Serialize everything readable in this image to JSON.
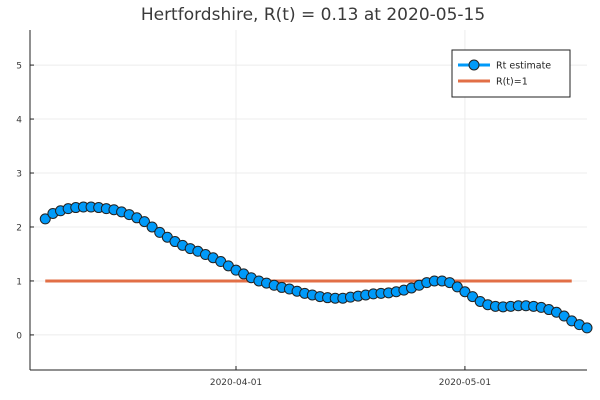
{
  "chart_data": {
    "type": "line",
    "title": "Hertfordshire, R(t) = 0.13 at 2020-05-15",
    "xlabel": "",
    "ylabel": "",
    "x_start": "2020-03-07",
    "x_end": "2020-05-15",
    "xlim": [
      "2020-03-05",
      "2020-05-17"
    ],
    "ylim": [
      -0.65,
      5.65
    ],
    "y_ticks": [
      0,
      1,
      2,
      3,
      4,
      5
    ],
    "x_ticks": [
      "2020-04-01",
      "2020-05-01"
    ],
    "grid": true,
    "legend_position": "top-right",
    "series": [
      {
        "name": "Rt estimate",
        "color": "#009af9",
        "style": "line-with-markers",
        "values": [
          2.15,
          2.25,
          2.3,
          2.34,
          2.36,
          2.37,
          2.37,
          2.36,
          2.34,
          2.32,
          2.28,
          2.23,
          2.17,
          2.1,
          2.0,
          1.9,
          1.81,
          1.73,
          1.66,
          1.6,
          1.55,
          1.49,
          1.43,
          1.36,
          1.28,
          1.2,
          1.13,
          1.06,
          1.0,
          0.96,
          0.92,
          0.88,
          0.85,
          0.81,
          0.77,
          0.74,
          0.71,
          0.69,
          0.68,
          0.68,
          0.7,
          0.72,
          0.74,
          0.76,
          0.77,
          0.78,
          0.8,
          0.83,
          0.87,
          0.92,
          0.97,
          1.0,
          1.0,
          0.97,
          0.89,
          0.8,
          0.71,
          0.62,
          0.56,
          0.53,
          0.52,
          0.53,
          0.54,
          0.54,
          0.53,
          0.51,
          0.47,
          0.42,
          0.35,
          0.26,
          0.19,
          0.13
        ]
      },
      {
        "name": "R(t)=1",
        "color": "#e26f46",
        "style": "line",
        "values": [
          1,
          1
        ]
      }
    ]
  }
}
